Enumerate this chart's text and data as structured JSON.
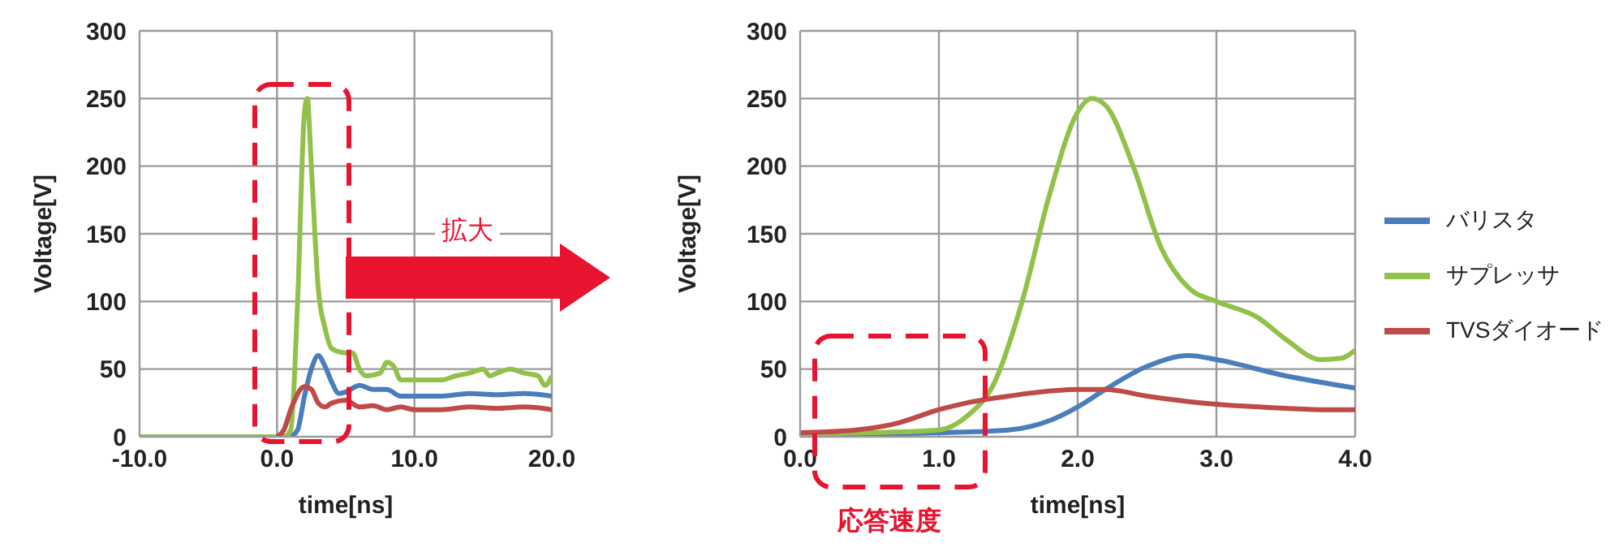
{
  "chart_data": [
    {
      "type": "line",
      "xlabel": "time[ns]",
      "ylabel": "Voltage[V]",
      "xlim": [
        -10,
        20
      ],
      "ylim": [
        0,
        300
      ],
      "xticks": [
        {
          "value": -10,
          "label": "-10.0"
        },
        {
          "value": 0,
          "label": "0.0"
        },
        {
          "value": 10,
          "label": "10.0"
        },
        {
          "value": 20,
          "label": "20.0"
        }
      ],
      "yticks": [
        0,
        50,
        100,
        150,
        200,
        250,
        300
      ],
      "grid": true,
      "legend": false,
      "marker": "none",
      "line_style": "solid",
      "annotations": [
        "拡大"
      ],
      "series": [
        {
          "color": "#4a7ebb",
          "x": [
            1,
            1.5,
            2,
            2.5,
            3,
            3.5,
            4,
            4.5,
            5,
            6,
            7,
            8,
            9,
            10,
            12,
            14,
            16,
            18,
            20
          ],
          "values": [
            0,
            5,
            30,
            50,
            60,
            52,
            40,
            32,
            33,
            38,
            35,
            35,
            30,
            30,
            30,
            32,
            31,
            32,
            30
          ]
        },
        {
          "color": "#92c14a",
          "x": [
            -10,
            -5,
            0,
            0.5,
            1,
            1.5,
            2,
            2.2,
            2.5,
            3,
            3.5,
            4,
            5,
            5.5,
            6,
            6.5,
            7.5,
            8,
            8.5,
            9,
            10,
            12,
            13,
            14,
            15,
            15.5,
            16,
            17,
            18,
            19,
            19.5,
            20
          ],
          "values": [
            0,
            0,
            0,
            0,
            5,
            100,
            240,
            250,
            200,
            110,
            80,
            65,
            62,
            62,
            50,
            45,
            47,
            55,
            52,
            42,
            42,
            42,
            45,
            47,
            50,
            45,
            47,
            50,
            47,
            45,
            38,
            45
          ]
        },
        {
          "color": "#be4b48",
          "x": [
            0,
            0.5,
            1,
            2,
            2.5,
            3,
            3.5,
            4,
            5,
            6,
            7,
            8,
            9,
            10,
            12,
            14,
            16,
            18,
            20
          ],
          "values": [
            0,
            5,
            20,
            37,
            35,
            25,
            22,
            25,
            27,
            22,
            23,
            20,
            22,
            20,
            20,
            22,
            21,
            22,
            20
          ]
        }
      ]
    },
    {
      "type": "line",
      "xlabel": "time[ns]",
      "ylabel": "Voltage[V]",
      "xlim": [
        0,
        4
      ],
      "ylim": [
        0,
        300
      ],
      "xticks": [
        {
          "value": 0,
          "label": "0.0"
        },
        {
          "value": 1,
          "label": "1.0"
        },
        {
          "value": 2,
          "label": "2.0"
        },
        {
          "value": 3,
          "label": "3.0"
        },
        {
          "value": 4,
          "label": "4.0"
        }
      ],
      "yticks": [
        0,
        50,
        100,
        150,
        200,
        250,
        300
      ],
      "grid": true,
      "legend": "right",
      "marker": "none",
      "line_style": "solid",
      "annotations": [
        "応答速度"
      ],
      "series": [
        {
          "name": "バリスタ",
          "color": "#4a7ebb",
          "x": [
            0,
            0.5,
            1,
            1.5,
            1.8,
            2,
            2.2,
            2.5,
            2.8,
            3,
            3.5,
            4
          ],
          "values": [
            2,
            2,
            3,
            5,
            12,
            22,
            35,
            52,
            60,
            57,
            45,
            36
          ]
        },
        {
          "name": "サプレッサ",
          "color": "#92c14a",
          "x": [
            0,
            0.5,
            1,
            1.2,
            1.4,
            1.6,
            1.8,
            2,
            2.1,
            2.2,
            2.4,
            2.6,
            2.8,
            3,
            3.3,
            3.5,
            3.75,
            3.9,
            4
          ],
          "values": [
            2,
            3,
            5,
            15,
            40,
            100,
            180,
            240,
            250,
            245,
            200,
            140,
            110,
            100,
            88,
            72,
            57,
            58,
            64
          ]
        },
        {
          "name": "TVSダイオード",
          "color": "#be4b48",
          "x": [
            0,
            0.4,
            0.7,
            1,
            1.2,
            1.5,
            2,
            2.2,
            2.5,
            2.8,
            3,
            3.5,
            3.8,
            4
          ],
          "values": [
            3,
            5,
            10,
            20,
            25,
            30,
            35,
            35,
            30,
            26,
            24,
            21,
            20,
            20
          ]
        }
      ]
    }
  ]
}
